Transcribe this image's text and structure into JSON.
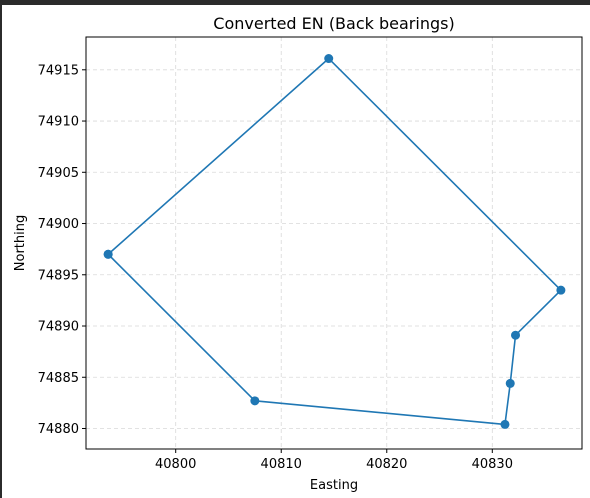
{
  "chart_data": {
    "type": "line",
    "title": "Converted EN (Back bearings)",
    "xlabel": "Easting",
    "ylabel": "Northing",
    "xlim": [
      40791.5,
      40838.5
    ],
    "ylim": [
      74878.0,
      74918.2
    ],
    "xticks": [
      40800,
      40810,
      40820,
      40830
    ],
    "yticks": [
      74880,
      74885,
      74890,
      74895,
      74900,
      74905,
      74910,
      74915
    ],
    "grid": true,
    "line_color": "#1f77b4",
    "marker": "circle",
    "series": [
      {
        "points": [
          {
            "x": 40793.6,
            "y": 74897.0
          },
          {
            "x": 40814.5,
            "y": 74916.1
          },
          {
            "x": 40836.5,
            "y": 74893.5
          },
          {
            "x": 40832.2,
            "y": 74889.1
          },
          {
            "x": 40831.7,
            "y": 74884.4
          },
          {
            "x": 40831.2,
            "y": 74880.4
          },
          {
            "x": 40807.5,
            "y": 74882.7
          },
          {
            "x": 40793.6,
            "y": 74897.0
          }
        ]
      }
    ]
  }
}
